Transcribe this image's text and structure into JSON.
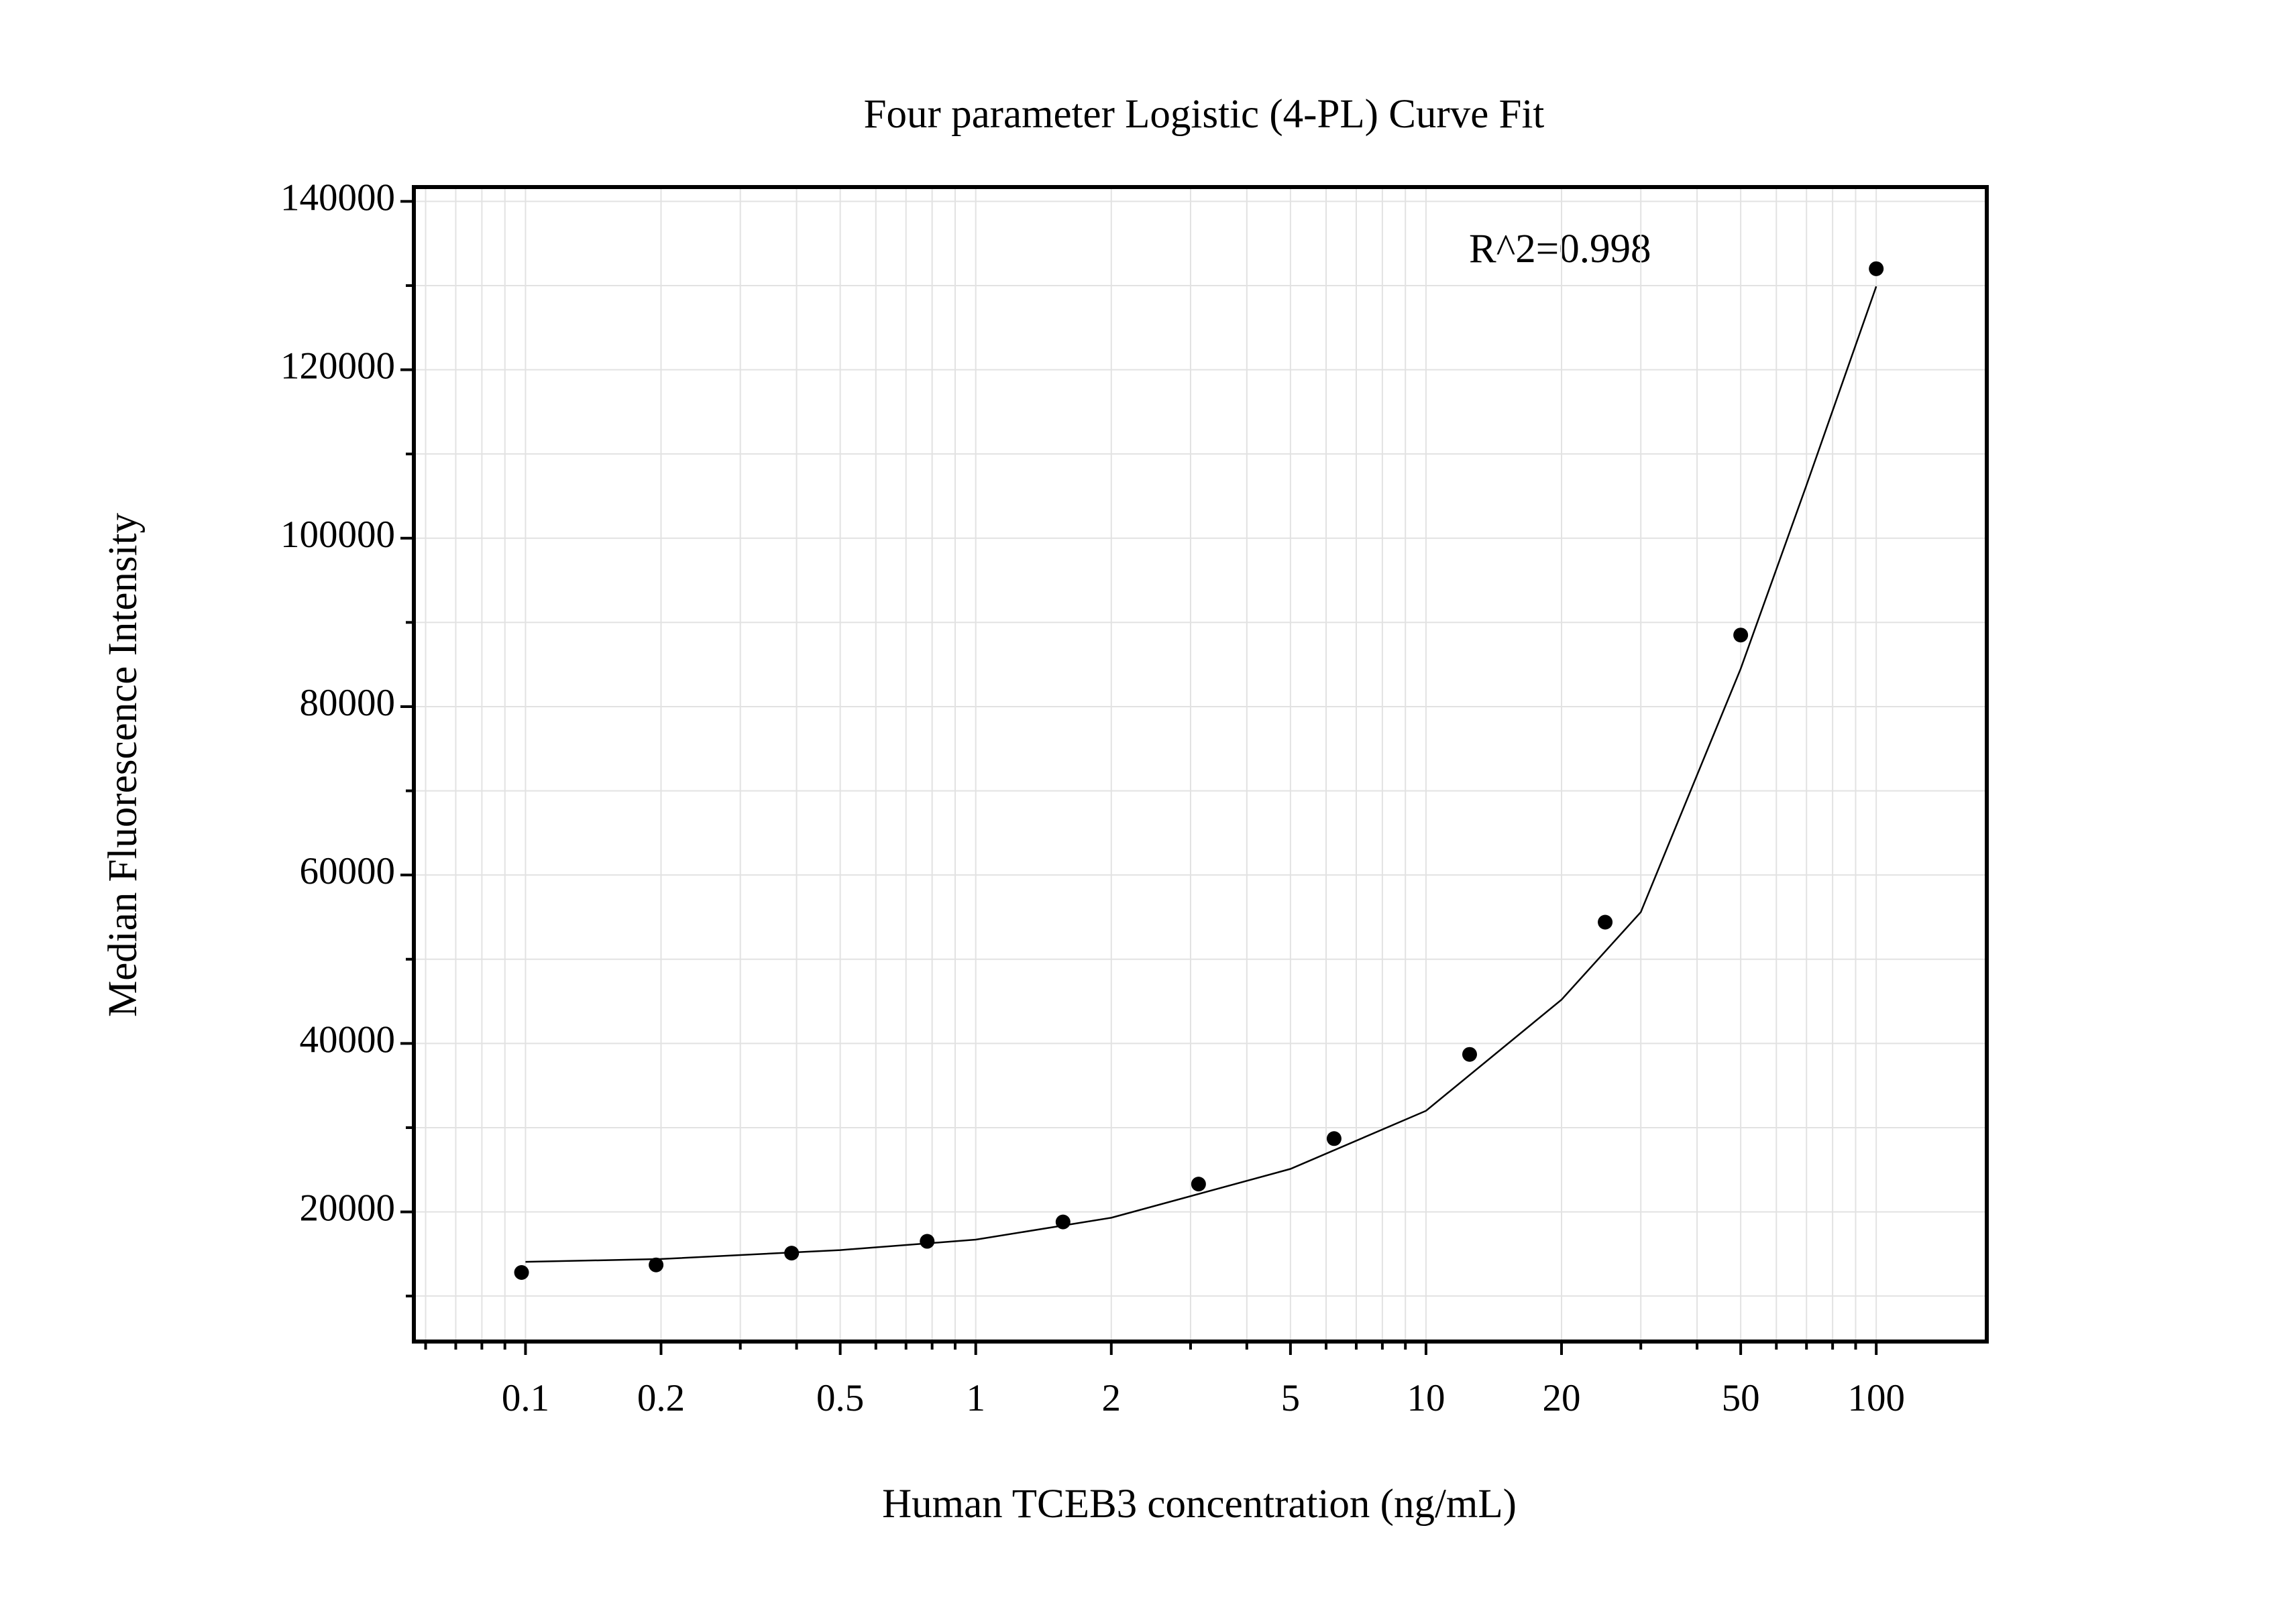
{
  "chart_data": {
    "type": "scatter",
    "title": "Four parameter Logistic (4-PL) Curve Fit",
    "x_label": "Human TCEB3 concentration (ng/mL)",
    "y_label": "Median Fluorescence Intensity",
    "annotation": "R^2=0.998",
    "x_scale": "log",
    "grid": true,
    "color": "#000000",
    "x": [
      0.098,
      0.195,
      0.39,
      0.78,
      1.5625,
      3.125,
      6.25,
      12.5,
      25,
      50,
      100
    ],
    "values": [
      12800,
      13700,
      15100,
      16500,
      18800,
      23300,
      28700,
      38700,
      54400,
      88500,
      132000
    ],
    "fit_curve": {
      "x": [
        0.1,
        0.2,
        0.5,
        1,
        2,
        5,
        10,
        20,
        30,
        50,
        70,
        100
      ],
      "values": [
        14060,
        14400,
        15460,
        16700,
        19300,
        25100,
        32000,
        45200,
        55600,
        84500,
        106300,
        129900
      ]
    },
    "xlim": [
      0.0565,
      176
    ],
    "ylim": [
      4600,
      141700
    ],
    "xticks": [
      0.1,
      0.2,
      0.5,
      1,
      2,
      5,
      10,
      20,
      50,
      100
    ],
    "xminorticks": [
      0.06,
      0.07,
      0.08,
      0.09,
      0.3,
      0.4,
      0.6,
      0.7,
      0.8,
      0.9,
      3,
      4,
      6,
      7,
      8,
      9,
      30,
      40,
      60,
      70,
      80,
      90
    ],
    "yticks": [
      20000,
      40000,
      60000,
      80000,
      100000,
      120000,
      140000
    ],
    "yminorticks": [
      10000,
      30000,
      50000,
      70000,
      90000,
      110000,
      130000
    ]
  }
}
